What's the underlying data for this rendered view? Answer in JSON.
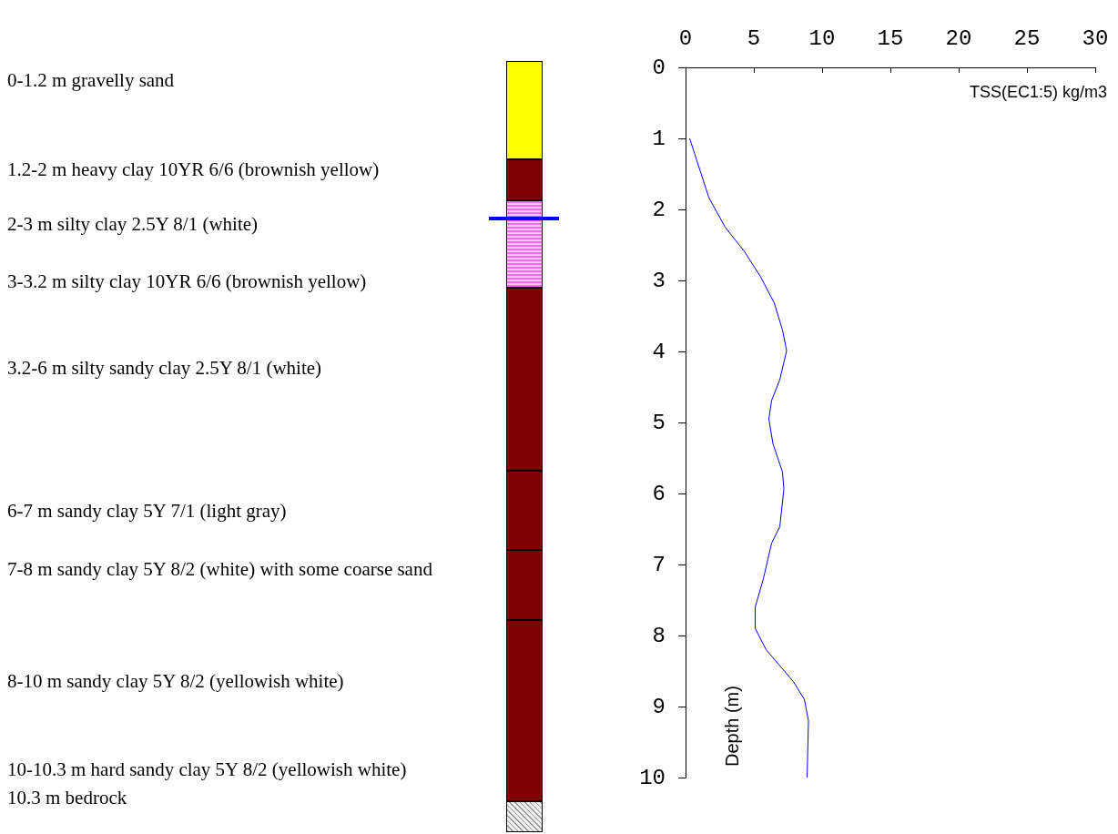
{
  "chart_data": {
    "type": "line",
    "xlabel": "TSS(EC1:5) kg/m3",
    "ylabel": "Depth (m)",
    "xlim": [
      0,
      30
    ],
    "xticks": [
      0,
      5,
      10,
      15,
      20,
      25,
      30
    ],
    "ylim": [
      10,
      0
    ],
    "yticks": [
      0,
      1,
      2,
      3,
      4,
      5,
      6,
      7,
      8,
      9,
      10
    ],
    "series": [
      {
        "color": "#0000ff",
        "x": [
          0.3,
          1.7,
          2.9,
          4.3,
          5.5,
          6.5,
          7.1,
          7.4,
          6.9,
          6.3,
          6.1,
          6.4,
          7.1,
          7.2,
          6.9,
          6.3,
          5.7,
          5.1,
          5.1,
          5.9,
          7.9,
          8.7,
          9.0,
          8.9
        ],
        "values": [
          1.0,
          1.83,
          2.25,
          2.59,
          2.95,
          3.32,
          3.7,
          3.99,
          4.4,
          4.69,
          4.95,
          5.3,
          5.7,
          5.94,
          6.47,
          6.7,
          7.2,
          7.6,
          7.9,
          8.2,
          8.65,
          8.9,
          9.2,
          10.0
        ]
      }
    ],
    "annotations": [
      "0-1.2 m gravelly sand",
      "1.2-2 m heavy clay 10YR 6/6 (brownish yellow)",
      "2-3 m silty clay 2.5Y 8/1 (white)",
      "3-3.2 m silty clay 10YR 6/6 (brownish yellow)",
      "3.2-6 m silty sandy clay 2.5Y 8/1 (white)",
      "6-7 m sandy clay 5Y 7/1 (light gray)",
      "7-8 m sandy clay 5Y 8/2 (white) with some coarse sand",
      "8-10 m sandy clay 5Y 8/2 (yellowish white)",
      "10-10.3 m hard sandy clay 5Y 8/2 (yellowish white)",
      "10.3 m bedrock"
    ]
  }
}
